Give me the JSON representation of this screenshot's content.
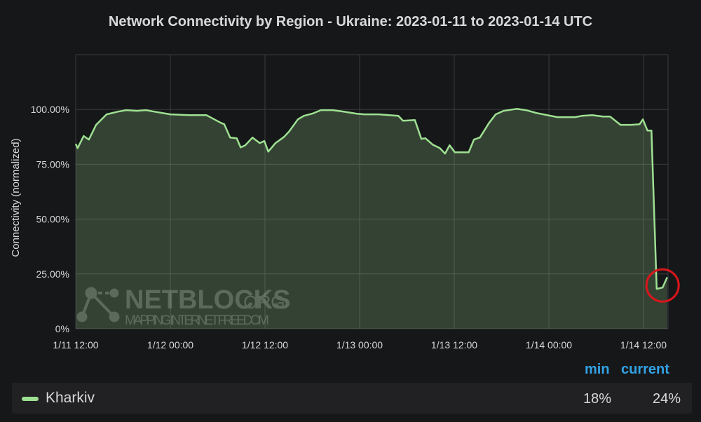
{
  "chart_data": {
    "type": "area",
    "title": "Network Connectivity by Region - Ukraine: 2023-01-11 to 2023-01-14 UTC",
    "ylabel": "Connectivity (normalized)",
    "xlabel": "",
    "ylim": [
      0,
      125
    ],
    "xlim": [
      "2023-01-11T12:00",
      "2023-01-14T15:20"
    ],
    "yticks": [
      0,
      25,
      50,
      75,
      100
    ],
    "ytick_labels": [
      "0%",
      "25.00%",
      "50.00%",
      "75.00%",
      "100.00%"
    ],
    "xticks": [
      "2023-01-11T12:00",
      "2023-01-12T00:00",
      "2023-01-12T12:00",
      "2023-01-13T00:00",
      "2023-01-13T12:00",
      "2023-01-14T00:00",
      "2023-01-14T12:00"
    ],
    "xtick_labels": [
      "1/11 12:00",
      "1/12 00:00",
      "1/12 12:00",
      "1/13 00:00",
      "1/13 12:00",
      "1/14 00:00",
      "1/14 12:00"
    ],
    "grid": true,
    "series": [
      {
        "name": "Kharkiv",
        "color": "#9ee092",
        "points": [
          [
            "2023-01-11T12:00",
            84.3
          ],
          [
            "2023-01-11T12:15",
            82.4
          ],
          [
            "2023-01-11T13:00",
            87.9
          ],
          [
            "2023-01-11T13:40",
            86.3
          ],
          [
            "2023-01-11T14:35",
            93.0
          ],
          [
            "2023-01-11T15:55",
            97.8
          ],
          [
            "2023-01-11T17:20",
            99.0
          ],
          [
            "2023-01-11T18:25",
            99.7
          ],
          [
            "2023-01-11T19:45",
            99.4
          ],
          [
            "2023-01-11T20:55",
            99.7
          ],
          [
            "2023-01-11T22:00",
            99.0
          ],
          [
            "2023-01-12T00:00",
            97.8
          ],
          [
            "2023-01-12T02:25",
            97.4
          ],
          [
            "2023-01-12T04:35",
            97.4
          ],
          [
            "2023-01-12T06:25",
            93.9
          ],
          [
            "2023-01-12T06:50",
            93.3
          ],
          [
            "2023-01-12T07:35",
            87.2
          ],
          [
            "2023-01-12T08:25",
            86.9
          ],
          [
            "2023-01-12T08:55",
            82.7
          ],
          [
            "2023-01-12T09:30",
            83.7
          ],
          [
            "2023-01-12T10:25",
            87.2
          ],
          [
            "2023-01-12T11:20",
            84.7
          ],
          [
            "2023-01-12T11:55",
            85.6
          ],
          [
            "2023-01-12T12:25",
            80.8
          ],
          [
            "2023-01-12T13:20",
            84.7
          ],
          [
            "2023-01-12T14:25",
            87.5
          ],
          [
            "2023-01-12T15:05",
            90.1
          ],
          [
            "2023-01-12T16:10",
            95.5
          ],
          [
            "2023-01-12T16:55",
            97.1
          ],
          [
            "2023-01-12T18:00",
            98.1
          ],
          [
            "2023-01-12T19:05",
            99.7
          ],
          [
            "2023-01-12T20:35",
            99.7
          ],
          [
            "2023-01-12T22:00",
            99.0
          ],
          [
            "2023-01-12T23:35",
            98.1
          ],
          [
            "2023-01-13T00:35",
            97.8
          ],
          [
            "2023-01-13T02:25",
            97.8
          ],
          [
            "2023-01-13T04:55",
            97.1
          ],
          [
            "2023-01-13T05:30",
            94.9
          ],
          [
            "2023-01-13T07:00",
            95.2
          ],
          [
            "2023-01-13T07:50",
            86.6
          ],
          [
            "2023-01-13T08:20",
            86.9
          ],
          [
            "2023-01-13T09:15",
            84.0
          ],
          [
            "2023-01-13T10:10",
            82.4
          ],
          [
            "2023-01-13T10:50",
            79.9
          ],
          [
            "2023-01-13T11:25",
            83.7
          ],
          [
            "2023-01-13T12:05",
            80.5
          ],
          [
            "2023-01-13T13:50",
            80.5
          ],
          [
            "2023-01-13T14:30",
            86.3
          ],
          [
            "2023-01-13T15:15",
            87.2
          ],
          [
            "2023-01-13T16:25",
            93.9
          ],
          [
            "2023-01-13T17:15",
            97.8
          ],
          [
            "2023-01-13T18:15",
            99.4
          ],
          [
            "2023-01-13T19:55",
            100.3
          ],
          [
            "2023-01-13T21:05",
            99.7
          ],
          [
            "2023-01-13T22:25",
            98.4
          ],
          [
            "2023-01-14T01:05",
            96.5
          ],
          [
            "2023-01-14T03:20",
            96.5
          ],
          [
            "2023-01-14T04:10",
            97.1
          ],
          [
            "2023-01-14T05:30",
            97.4
          ],
          [
            "2023-01-14T06:50",
            96.8
          ],
          [
            "2023-01-14T07:45",
            96.8
          ],
          [
            "2023-01-14T09:05",
            93.0
          ],
          [
            "2023-01-14T10:25",
            93.0
          ],
          [
            "2023-01-14T11:30",
            93.3
          ],
          [
            "2023-01-14T11:55",
            95.5
          ],
          [
            "2023-01-14T12:30",
            90.4
          ],
          [
            "2023-01-14T13:00",
            90.4
          ],
          [
            "2023-01-14T13:40",
            18.2
          ],
          [
            "2023-01-14T14:25",
            18.8
          ],
          [
            "2023-01-14T15:00",
            23.5
          ]
        ]
      }
    ],
    "annotation": {
      "type": "circle",
      "color": "#d9161b",
      "at": "2023-01-14T14:25"
    },
    "legend": {
      "placement": "bottom",
      "headers": [
        "min",
        "current"
      ],
      "rows": [
        {
          "name": "Kharkiv",
          "min": "18%",
          "current": "24%"
        }
      ]
    }
  },
  "watermark": {
    "brand": "NETBLOCKS",
    "tld": ".ORG",
    "tagline": "MAPPING INTERNET FREEDOM"
  },
  "colors": {
    "background": "#161719",
    "fill": "#313c31",
    "line": "#9ee092",
    "header": "#33a2e5",
    "grid": "#3a3b3e"
  }
}
